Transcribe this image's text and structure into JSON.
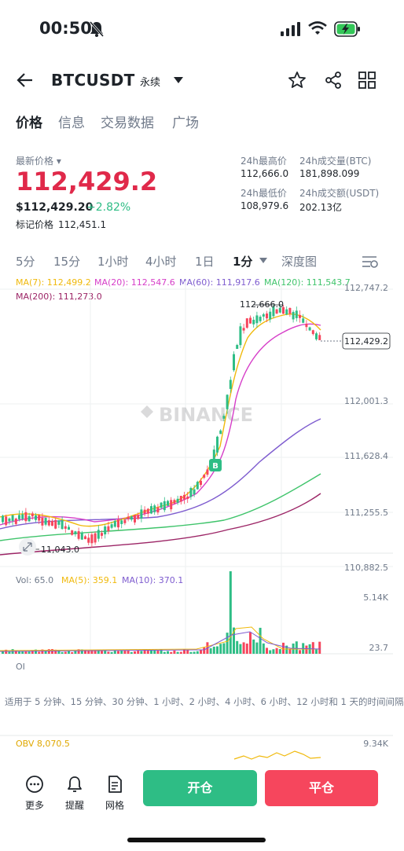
{
  "status": {
    "time": "00:50"
  },
  "header": {
    "symbol": "BTCUSDT",
    "contract": "永续"
  },
  "tabs": [
    "价格",
    "信息",
    "交易数据",
    "广场"
  ],
  "price": {
    "label": "最新价格",
    "last": "112,429.2",
    "usd": "$112,429.20",
    "change": "+2.82%",
    "mark_label": "标记价格",
    "mark": "112,451.1"
  },
  "stats": {
    "high_label": "24h最高价",
    "high": "112,666.0",
    "vol_btc_label": "24h成交量(BTC)",
    "vol_btc": "181,898.099",
    "low_label": "24h最低价",
    "low": "108,979.6",
    "vol_usdt_label": "24h成交额(USDT)",
    "vol_usdt": "202.13亿"
  },
  "intervals": [
    "5分",
    "15分",
    "1小时",
    "4小时",
    "1日",
    "1分",
    "深度图"
  ],
  "ma": {
    "ma7": "MA(7): 112,499.2",
    "ma20": "MA(20): 112,547.6",
    "ma60": "MA(60): 111,917.6",
    "ma120": "MA(120): 111,543.7",
    "ma200": "MA(200): 111,273.0"
  },
  "colors": {
    "ma7": "#f0b90b",
    "ma20": "#d63ec8",
    "ma60": "#7e5ccf",
    "ma120": "#3fc46b",
    "ma200": "#9c2566",
    "up": "#2ebd85",
    "down": "#f6465d"
  },
  "chart": {
    "price_axis": [
      "112,747.2",
      "112,001.3",
      "111,628.4",
      "111,255.5",
      "110,882.5"
    ],
    "high_marker": "112,666.0",
    "low_marker": "11,043.0",
    "current_price_tag": "112,429.2",
    "watermark": "BINANCE"
  },
  "volume": {
    "vol": "Vol: 65.0",
    "ma5": "MA(5): 359.1",
    "ma10": "MA(10): 370.1",
    "axis_max": "5.14K",
    "axis_min": "23.7"
  },
  "oi": {
    "label": "OI",
    "note": "适用于 5 分钟、15 分钟、30 分钟、1 小时、2 小时、4 小时、6 小时、12 小时和 1 天的时间间隔"
  },
  "obv": {
    "label": "OBV 8,070.5",
    "axis": "9.34K"
  },
  "bottom": {
    "more": "更多",
    "alert": "提醒",
    "grid": "网格",
    "open": "开仓",
    "close": "平仓"
  }
}
